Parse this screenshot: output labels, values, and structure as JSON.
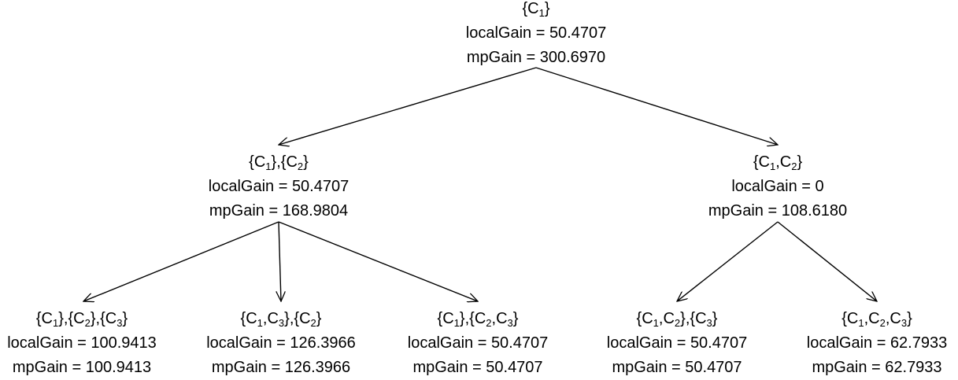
{
  "tree": {
    "root": {
      "set": [
        [
          "C",
          "1"
        ]
      ],
      "local_gain": "localGain = 50.4707",
      "mp_gain": "mpGain = 300.6970"
    },
    "left": {
      "set": [
        [
          "C",
          "1"
        ],
        [
          "C",
          "2"
        ]
      ],
      "local_gain": "localGain = 50.4707",
      "mp_gain": "mpGain = 168.9804"
    },
    "right": {
      "set": [
        [
          "C",
          "1",
          "C",
          "2"
        ]
      ],
      "local_gain": "localGain = 0",
      "mp_gain": "mpGain = 108.6180"
    },
    "left_left": {
      "set": [
        [
          "C",
          "1"
        ],
        [
          "C",
          "2"
        ],
        [
          "C",
          "3"
        ]
      ],
      "local_gain": "localGain = 100.9413",
      "mp_gain": "mpGain = 100.9413"
    },
    "left_middle": {
      "set": [
        [
          "C",
          "1",
          "C",
          "3"
        ],
        [
          "C",
          "2"
        ]
      ],
      "local_gain": "localGain = 126.3966",
      "mp_gain": "mpGain = 126.3966"
    },
    "left_right": {
      "set": [
        [
          "C",
          "1"
        ],
        [
          "C",
          "2",
          "C",
          "3"
        ]
      ],
      "local_gain": "localGain = 50.4707",
      "mp_gain": "mpGain = 50.4707"
    },
    "right_left": {
      "set": [
        [
          "C",
          "1",
          "C",
          "2"
        ],
        [
          "C",
          "3"
        ]
      ],
      "local_gain": "localGain = 50.4707",
      "mp_gain": "mpGain = 50.4707"
    },
    "right_right": {
      "set": [
        [
          "C",
          "1",
          "C",
          "2",
          "C",
          "3"
        ]
      ],
      "local_gain": "localGain = 62.7933",
      "mp_gain": "mpGain = 62.7933"
    }
  },
  "colors": {
    "text": "#000000",
    "edge": "#000000",
    "background": "#ffffff"
  }
}
